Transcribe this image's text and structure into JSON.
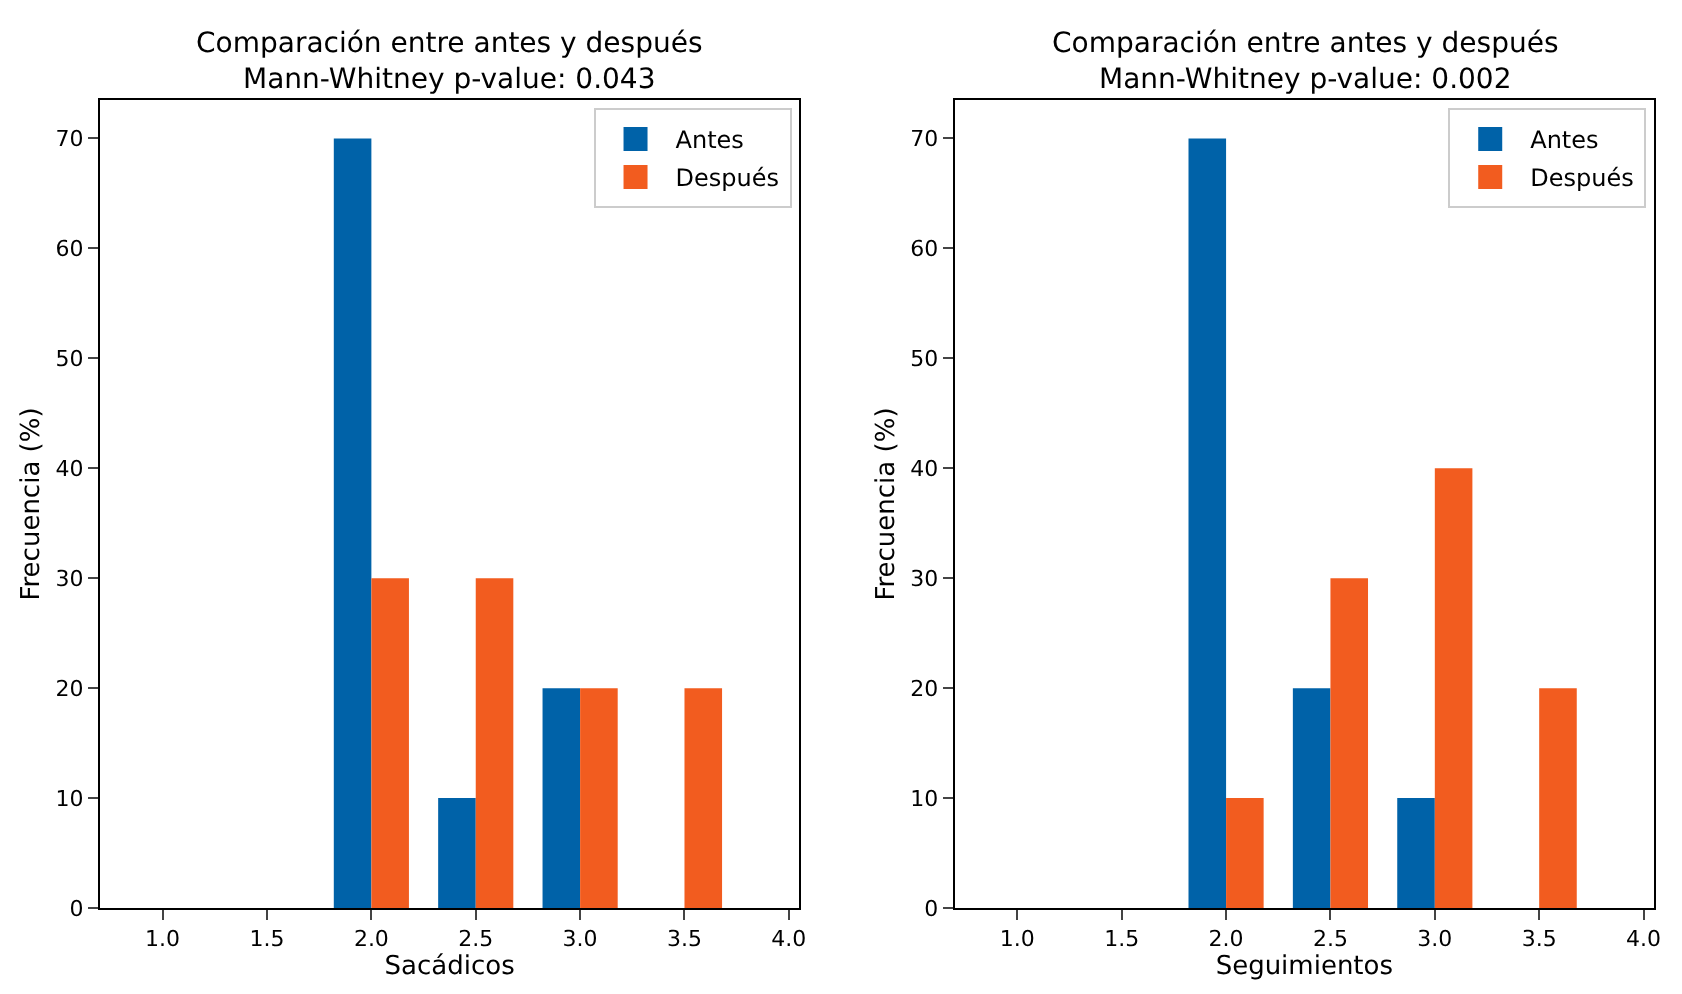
{
  "chart_data": [
    {
      "type": "bar",
      "title": "Comparación entre antes y después",
      "subtitle": "Mann-Whitney p-value: 0.043",
      "xlabel": "Sacádicos",
      "ylabel": "Frecuencia (%)",
      "x": [
        2.0,
        2.5,
        3.0,
        3.5
      ],
      "series": [
        {
          "name": "Antes",
          "color": "#0062a8",
          "values": [
            70,
            10,
            20,
            0
          ]
        },
        {
          "name": "Después",
          "color": "#f25c1f",
          "values": [
            30,
            30,
            20,
            20
          ]
        }
      ],
      "xlim": [
        0.7,
        4.05
      ],
      "xticks": [
        {
          "value": 1.0,
          "label": "1.0"
        },
        {
          "value": 1.5,
          "label": "1.5"
        },
        {
          "value": 2.0,
          "label": "2.0"
        },
        {
          "value": 2.5,
          "label": "2.5"
        },
        {
          "value": 3.0,
          "label": "3.0"
        },
        {
          "value": 3.5,
          "label": "3.5"
        },
        {
          "value": 4.0,
          "label": "4.0"
        }
      ],
      "ylim": [
        0,
        73.5
      ],
      "yticks": [
        0,
        10,
        20,
        30,
        40,
        50,
        60,
        70
      ],
      "legend": "top right"
    },
    {
      "type": "bar",
      "title": "Comparación entre antes y después",
      "subtitle": "Mann-Whitney p-value: 0.002",
      "xlabel": "Seguimientos",
      "ylabel": "Frecuencia (%)",
      "x": [
        2.0,
        2.5,
        3.0,
        3.5
      ],
      "series": [
        {
          "name": "Antes",
          "color": "#0062a8",
          "values": [
            70,
            20,
            10,
            0
          ]
        },
        {
          "name": "Después",
          "color": "#f25c1f",
          "values": [
            10,
            30,
            40,
            20
          ]
        }
      ],
      "xlim": [
        0.7,
        4.05
      ],
      "xticks": [
        {
          "value": 1.0,
          "label": "1.0"
        },
        {
          "value": 1.5,
          "label": "1.5"
        },
        {
          "value": 2.0,
          "label": "2.0"
        },
        {
          "value": 2.5,
          "label": "2.5"
        },
        {
          "value": 3.0,
          "label": "3.0"
        },
        {
          "value": 3.5,
          "label": "3.5"
        },
        {
          "value": 4.0,
          "label": "4.0"
        }
      ],
      "ylim": [
        0,
        73.5
      ],
      "yticks": [
        0,
        10,
        20,
        30,
        40,
        50,
        60,
        70
      ],
      "legend": "top right"
    }
  ]
}
